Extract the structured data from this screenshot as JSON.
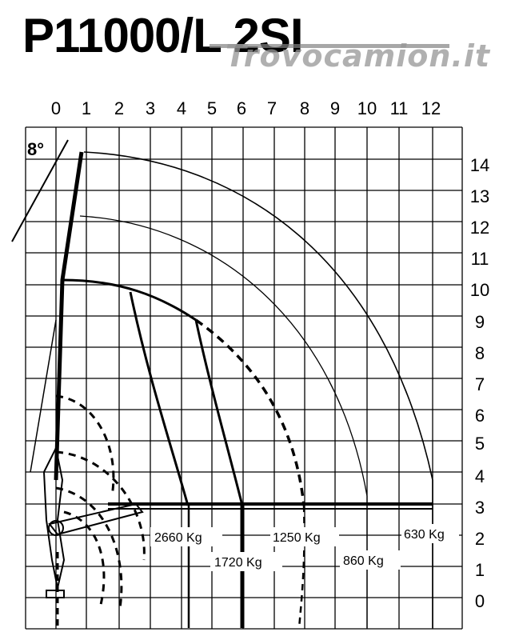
{
  "title": "P11000/L 2SI",
  "watermark": "Trovocamion.it",
  "angle_label": "8°",
  "x_ticks": [
    "0",
    "1",
    "2",
    "3",
    "4",
    "5",
    "6",
    "7",
    "8",
    "9",
    "10",
    "11",
    "12"
  ],
  "y_ticks": [
    "14",
    "13",
    "12",
    "11",
    "10",
    "9",
    "8",
    "7",
    "6",
    "5",
    "4",
    "3",
    "2",
    "1",
    "0"
  ],
  "loads": {
    "l2660": "2660 Kg",
    "l1720": "1720 Kg",
    "l1250": "1250 Kg",
    "l860": "860 Kg",
    "l630": "630 Kg"
  }
}
